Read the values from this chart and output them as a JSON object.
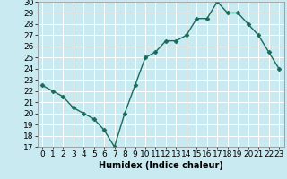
{
  "x": [
    0,
    1,
    2,
    3,
    4,
    5,
    6,
    7,
    8,
    9,
    10,
    11,
    12,
    13,
    14,
    15,
    16,
    17,
    18,
    19,
    20,
    21,
    22,
    23
  ],
  "y": [
    22.5,
    22.0,
    21.5,
    20.5,
    20.0,
    19.5,
    18.5,
    17.0,
    20.0,
    22.5,
    25.0,
    25.5,
    26.5,
    26.5,
    27.0,
    28.5,
    28.5,
    30.0,
    29.0,
    29.0,
    28.0,
    27.0,
    25.5,
    24.0
  ],
  "line_color": "#1a6b5a",
  "marker": "D",
  "marker_size": 2.5,
  "bg_color": "#c8eaf0",
  "grid_color": "#ffffff",
  "xlabel": "Humidex (Indice chaleur)",
  "xlim": [
    -0.5,
    23.5
  ],
  "ylim": [
    17,
    30
  ],
  "yticks": [
    17,
    18,
    19,
    20,
    21,
    22,
    23,
    24,
    25,
    26,
    27,
    28,
    29,
    30
  ],
  "xticks": [
    0,
    1,
    2,
    3,
    4,
    5,
    6,
    7,
    8,
    9,
    10,
    11,
    12,
    13,
    14,
    15,
    16,
    17,
    18,
    19,
    20,
    21,
    22,
    23
  ],
  "label_fontsize": 7,
  "tick_fontsize": 6.5,
  "grid_linewidth": 0.7,
  "line_linewidth": 1.0
}
